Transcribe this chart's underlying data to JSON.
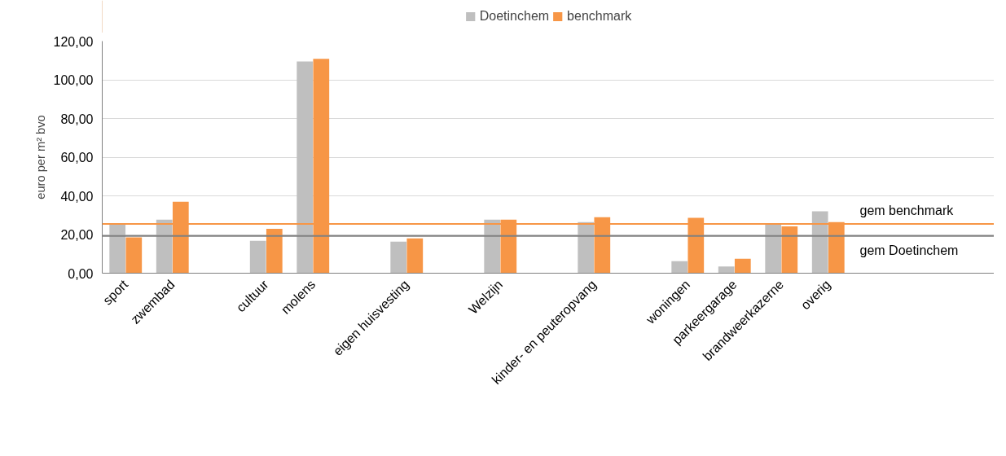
{
  "chart_data": {
    "type": "bar",
    "ylabel": "euro per m² bvo",
    "categories": [
      "sport",
      "zwembad",
      null,
      "cultuur",
      "molens",
      null,
      "eigen huisvesting",
      null,
      "Welzijn",
      null,
      "kinder- en peuteropvang",
      null,
      "woningen",
      "parkeergarage",
      "brandweerkazerne",
      "overig"
    ],
    "series": [
      {
        "name": "Doetinchem",
        "color": "#bfbfbf",
        "values": [
          25.5,
          27.7,
          null,
          16.7,
          109.5,
          null,
          16.3,
          null,
          27.7,
          null,
          26.4,
          null,
          6.2,
          3.5,
          25.5,
          32
        ]
      },
      {
        "name": "benchmark",
        "color": "#f79646",
        "values": [
          18.5,
          36.9,
          null,
          22.9,
          110.8,
          null,
          18,
          null,
          27.7,
          null,
          29,
          null,
          28.6,
          7.5,
          24.2,
          26.4
        ]
      }
    ],
    "ylim": [
      0,
      120
    ],
    "yticks": [
      {
        "value": 0,
        "label": "0,00"
      },
      {
        "value": 20,
        "label": "20,00"
      },
      {
        "value": 40,
        "label": "40,00"
      },
      {
        "value": 60,
        "label": "60,00"
      },
      {
        "value": 80,
        "label": "80,00"
      },
      {
        "value": 100,
        "label": "100,00"
      },
      {
        "value": 120,
        "label": "120,00"
      }
    ],
    "ref_lines": [
      {
        "axis": "y",
        "value": 25.5,
        "label": "gem benchmark",
        "color": "#f79646"
      },
      {
        "axis": "y",
        "value": 19.3,
        "label": "gem Doetinchem",
        "color": "#808080"
      }
    ],
    "grid": "y",
    "legend": "top"
  }
}
